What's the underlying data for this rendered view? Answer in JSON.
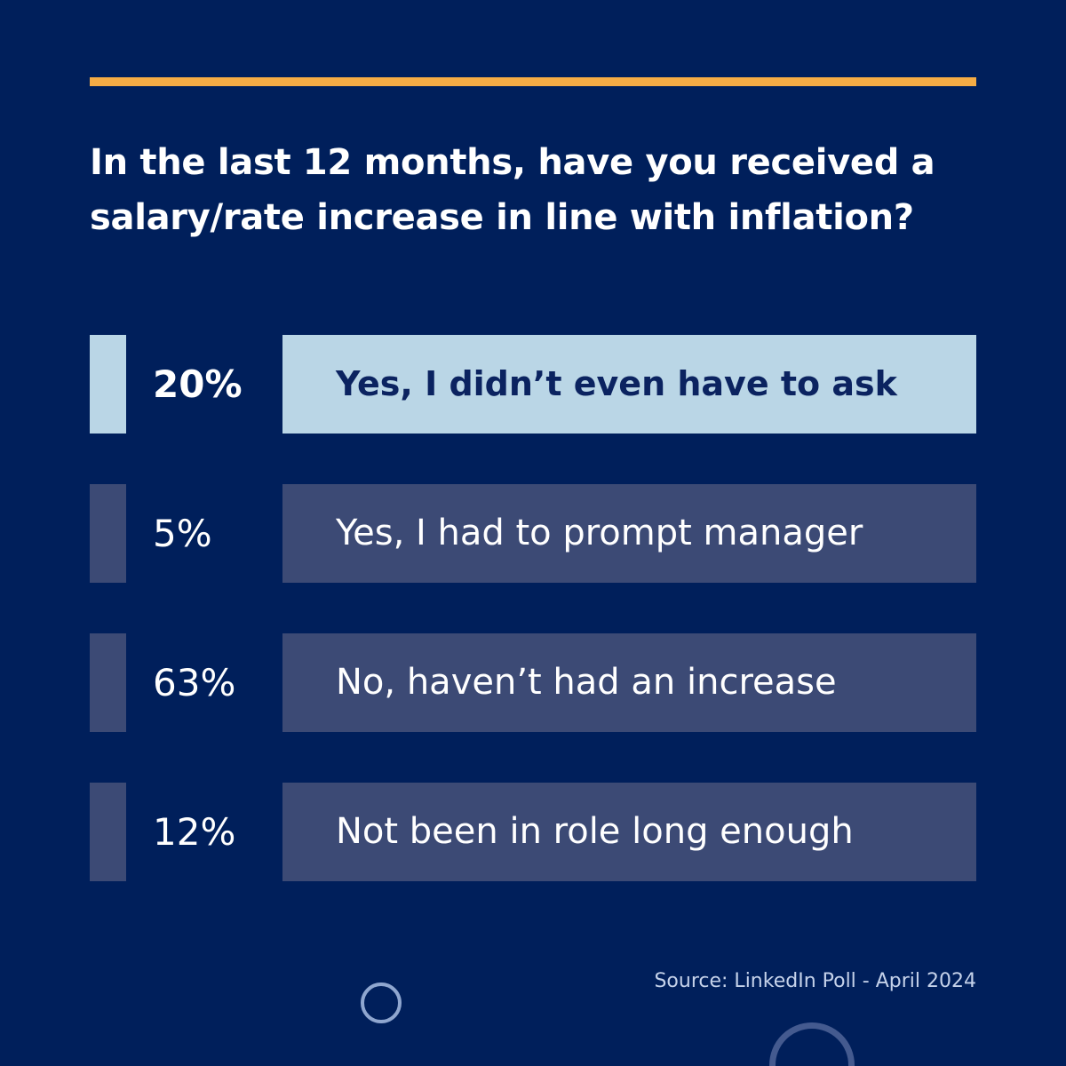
{
  "title": "In the last 12 months, have you received a salary/rate increase in line with inflation?",
  "colors": {
    "background": "#001f5b",
    "accent": "#f5ac45",
    "highlight": "#bad6e6",
    "row": "#3c4a75"
  },
  "chart_data": {
    "type": "table",
    "title": "In the last 12 months, have you received a salary/rate increase in line with inflation?",
    "rows": [
      {
        "percent_label": "20%",
        "value": 20,
        "answer": "Yes, I didn’t even have to ask",
        "highlighted": true
      },
      {
        "percent_label": "5%",
        "value": 5,
        "answer": "Yes, I had to prompt manager",
        "highlighted": false
      },
      {
        "percent_label": "63%",
        "value": 63,
        "answer": "No, haven’t had an increase",
        "highlighted": false
      },
      {
        "percent_label": "12%",
        "value": 12,
        "answer": "Not been in role long enough",
        "highlighted": false
      }
    ]
  },
  "source": "Source: LinkedIn Poll - April 2024",
  "decorations": [
    "circle-outline-icon",
    "circle-outline-icon"
  ]
}
